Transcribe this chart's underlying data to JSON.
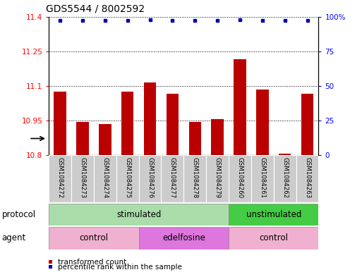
{
  "title": "GDS5544 / 8002592",
  "samples": [
    "GSM1084272",
    "GSM1084273",
    "GSM1084274",
    "GSM1084275",
    "GSM1084276",
    "GSM1084277",
    "GSM1084278",
    "GSM1084279",
    "GSM1084260",
    "GSM1084261",
    "GSM1084262",
    "GSM1084263"
  ],
  "bar_values": [
    11.075,
    10.945,
    10.935,
    11.075,
    11.115,
    11.065,
    10.945,
    10.955,
    11.215,
    11.085,
    10.805,
    11.065
  ],
  "dot_values": [
    97,
    97,
    97,
    97,
    98,
    97,
    97,
    97,
    98,
    97,
    97,
    97
  ],
  "ylim_left": [
    10.8,
    11.4
  ],
  "ylim_right": [
    0,
    100
  ],
  "yticks_left": [
    10.8,
    10.95,
    11.1,
    11.25,
    11.4
  ],
  "yticks_right": [
    0,
    25,
    50,
    75,
    100
  ],
  "bar_color": "#bb0000",
  "dot_color": "#0000bb",
  "bar_baseline": 10.8,
  "protocol_groups": [
    {
      "label": "stimulated",
      "start": 0,
      "end": 8,
      "color": "#aaddaa"
    },
    {
      "label": "unstimulated",
      "start": 8,
      "end": 12,
      "color": "#44cc44"
    }
  ],
  "agent_groups": [
    {
      "label": "control",
      "start": 0,
      "end": 4,
      "color": "#f0b0d0"
    },
    {
      "label": "edelfosine",
      "start": 4,
      "end": 8,
      "color": "#dd77dd"
    },
    {
      "label": "control",
      "start": 8,
      "end": 12,
      "color": "#f0b0d0"
    }
  ],
  "legend_bar_label": "transformed count",
  "legend_dot_label": "percentile rank within the sample",
  "protocol_label": "protocol",
  "agent_label": "agent",
  "title_fontsize": 10,
  "tick_fontsize": 7.5,
  "label_fontsize": 8.5,
  "group_fontsize": 8.5,
  "legend_fontsize": 7.5
}
